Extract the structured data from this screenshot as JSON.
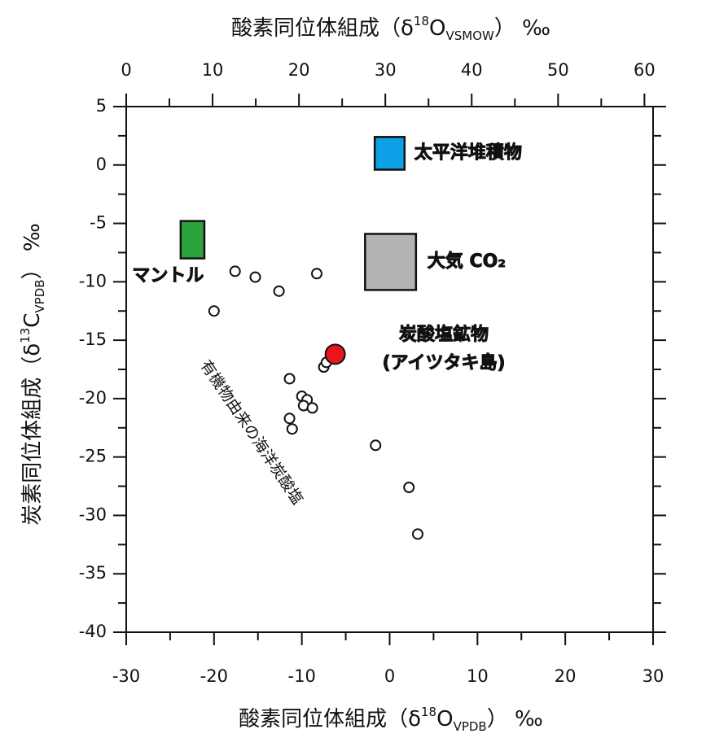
{
  "chart_data": {
    "type": "scatter",
    "x2label": {
      "main": "酸素同位体組成（δ",
      "sup": "18",
      "base": "O",
      "sub": "VSMOW",
      "end": "） ‰"
    },
    "xlabel": {
      "main": "酸素同位体組成（δ",
      "sup": "18",
      "base": "O",
      "sub": "VPDB",
      "end": "） ‰"
    },
    "ylabel": {
      "main": "炭素同位体組成（δ",
      "sup": "13",
      "base": "C",
      "sub": "VPDB",
      "end": "） ‰"
    },
    "xlim": [
      -30,
      30
    ],
    "xticks": [
      -30,
      -20,
      -10,
      0,
      10,
      20,
      30
    ],
    "xminorticks": [
      -25,
      -15,
      -5,
      5,
      15,
      25
    ],
    "x2lim": [
      0,
      61
    ],
    "x2ticks": [
      0,
      10,
      20,
      30,
      40,
      50,
      60
    ],
    "x2minorticks": [
      5,
      15,
      25,
      35,
      45,
      55
    ],
    "ylim": [
      -40,
      5
    ],
    "yticks": [
      5,
      0,
      -5,
      -10,
      -15,
      -20,
      -25,
      -30,
      -35,
      -40
    ],
    "yminorticks": [
      2.5,
      -2.5,
      -7.5,
      -12.5,
      -17.5,
      -22.5,
      -27.5,
      -32.5,
      -37.5
    ],
    "series": [
      {
        "name": "有機物由来の海洋炭酸塩",
        "color": "#ffffff",
        "x": [
          -20,
          -17.6,
          -15.3,
          -12.6,
          -8.3,
          -11.4,
          -11.4,
          -11.1,
          -10.0,
          -9.4,
          -9.8,
          -8.8,
          -7.5,
          -7.2,
          -1.6,
          2.2,
          3.2
        ],
        "y": [
          -12.5,
          -9.1,
          -9.6,
          -10.8,
          -9.3,
          -18.3,
          -21.7,
          -22.6,
          -19.8,
          -20.1,
          -20.6,
          -20.8,
          -17.3,
          -16.9,
          -24.0,
          -27.6,
          -31.6
        ]
      },
      {
        "name": [
          "炭酸塩鉱物",
          "(アイツタキ島)"
        ],
        "color": "#e8141e",
        "x": [
          -6.2
        ],
        "y": [
          -16.2
        ]
      }
    ],
    "regions": [
      {
        "name": "太平洋堆積物",
        "color": "#0ea0e6",
        "xrange": [
          -1.7,
          1.7
        ],
        "yrange": [
          -0.4,
          2.4
        ]
      },
      {
        "name": "マントル",
        "color": "#2ca23c",
        "xrange": [
          -23.8,
          -21.1
        ],
        "yrange": [
          -8.0,
          -4.8
        ]
      },
      {
        "name": "大気 CO₂",
        "color": "#b4b4b4",
        "xrange": [
          -2.8,
          3.0
        ],
        "yrange": [
          -10.7,
          -5.9
        ]
      }
    ]
  }
}
